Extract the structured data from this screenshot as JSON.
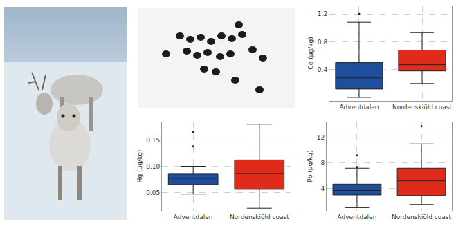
{
  "chart_data": [
    {
      "type": "box",
      "y_label": "Cd (µg/kg)",
      "categories": [
        "Adventdalen",
        "Nordenskiöld coast"
      ],
      "colors": [
        "#1f4e9c",
        "#e02a1a"
      ],
      "boxes": [
        {
          "lower_whisker": 0.0,
          "q1": 0.12,
          "median": 0.28,
          "q3": 0.5,
          "upper_whisker": 1.08,
          "outliers": [
            1.2
          ]
        },
        {
          "lower_whisker": 0.2,
          "q1": 0.38,
          "median": 0.47,
          "q3": 0.68,
          "upper_whisker": 0.93,
          "outliers": []
        }
      ],
      "ylim": [
        -0.05,
        1.32
      ],
      "yticks": [
        0.4,
        0.8,
        1.2
      ],
      "grid": true
    },
    {
      "type": "box",
      "y_label": "Hg (µg/kg)",
      "categories": [
        "Adventdalen",
        "Nordenskiöld coast"
      ],
      "colors": [
        "#1f4e9c",
        "#e02a1a"
      ],
      "boxes": [
        {
          "lower_whisker": 0.047,
          "q1": 0.065,
          "median": 0.077,
          "q3": 0.085,
          "upper_whisker": 0.1,
          "outliers": [
            0.138,
            0.165
          ]
        },
        {
          "lower_whisker": 0.02,
          "q1": 0.056,
          "median": 0.086,
          "q3": 0.112,
          "upper_whisker": 0.18,
          "outliers": []
        }
      ],
      "ylim": [
        0.015,
        0.185
      ],
      "yticks": [
        0.05,
        {
          "value": 0.1,
          "label": "0.10"
        },
        0.15
      ],
      "grid": true
    },
    {
      "type": "box",
      "y_label": "Pb (µg/kg)",
      "categories": [
        "Adventdalen",
        "Nordenskiöld coast"
      ],
      "colors": [
        "#1f4e9c",
        "#e02a1a"
      ],
      "boxes": [
        {
          "lower_whisker": 1.0,
          "q1": 3.0,
          "median": 3.7,
          "q3": 4.7,
          "upper_whisker": 7.2,
          "outliers": [
            7.4,
            9.2
          ]
        },
        {
          "lower_whisker": 1.5,
          "q1": 2.9,
          "median": 5.2,
          "q3": 7.2,
          "upper_whisker": 11.0,
          "outliers": [
            13.8
          ]
        }
      ],
      "ylim": [
        0.5,
        14.5
      ],
      "yticks": [
        4,
        8,
        12
      ],
      "grid": true
    }
  ]
}
